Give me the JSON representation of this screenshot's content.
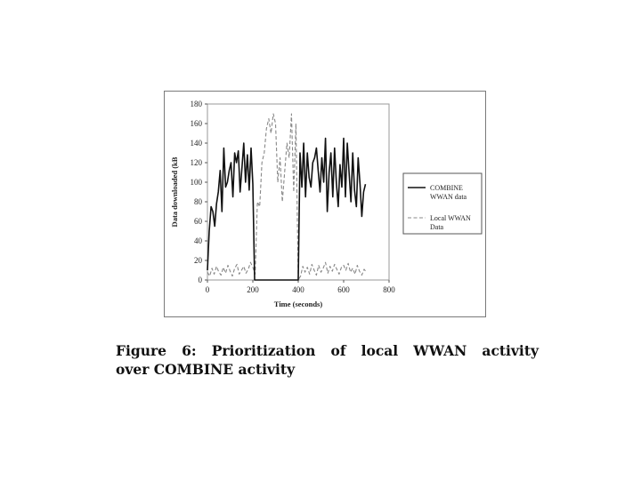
{
  "caption": {
    "line1": "Figure 6:  Prioritization  of  local  WWAN  activity",
    "line2": "over COMBINE activity"
  },
  "chart_data": {
    "type": "line",
    "xlabel": "Time (seconds)",
    "ylabel": "Data downloaded (kB",
    "xlim": [
      0,
      800
    ],
    "ylim": [
      0,
      180
    ],
    "xticks": [
      0,
      200,
      400,
      600,
      800
    ],
    "yticks": [
      0,
      20,
      40,
      60,
      80,
      100,
      120,
      140,
      160,
      180
    ],
    "grid": false,
    "legend_position": "right",
    "series": [
      {
        "name": "COMBINE WWAN data",
        "style": "solid",
        "color": "#111111",
        "x": [
          0,
          8,
          16,
          24,
          32,
          40,
          48,
          56,
          64,
          72,
          80,
          88,
          96,
          104,
          112,
          120,
          128,
          136,
          144,
          152,
          160,
          168,
          176,
          184,
          192,
          200,
          208,
          216,
          224,
          232,
          240,
          248,
          256,
          264,
          272,
          280,
          288,
          296,
          304,
          312,
          320,
          328,
          336,
          344,
          352,
          360,
          368,
          376,
          384,
          392,
          400,
          408,
          416,
          424,
          432,
          440,
          448,
          456,
          464,
          472,
          480,
          488,
          496,
          504,
          512,
          520,
          528,
          536,
          544,
          552,
          560,
          568,
          576,
          584,
          592,
          600,
          608,
          616,
          624,
          632,
          640,
          648,
          656,
          664,
          672,
          680,
          688,
          696
        ],
        "y": [
          10,
          50,
          75,
          70,
          55,
          78,
          90,
          112,
          70,
          135,
          95,
          100,
          112,
          120,
          85,
          130,
          120,
          132,
          90,
          115,
          140,
          100,
          128,
          92,
          135,
          98,
          0,
          0,
          0,
          0,
          0,
          0,
          0,
          0,
          0,
          0,
          0,
          0,
          0,
          0,
          0,
          0,
          0,
          0,
          0,
          0,
          0,
          0,
          0,
          0,
          0,
          130,
          95,
          140,
          85,
          130,
          105,
          95,
          120,
          125,
          135,
          112,
          90,
          125,
          100,
          145,
          70,
          110,
          130,
          85,
          135,
          100,
          75,
          118,
          95,
          145,
          85,
          140,
          110,
          80,
          130,
          92,
          75,
          125,
          98,
          65,
          90,
          98
        ]
      },
      {
        "name": "Local WWAN Data",
        "style": "dashed",
        "color": "#888888",
        "x": [
          0,
          10,
          20,
          30,
          40,
          50,
          60,
          70,
          80,
          90,
          100,
          110,
          120,
          130,
          140,
          150,
          160,
          170,
          180,
          190,
          200,
          210,
          220,
          230,
          240,
          250,
          260,
          270,
          280,
          290,
          300,
          310,
          320,
          330,
          340,
          350,
          360,
          370,
          380,
          390,
          400,
          410,
          420,
          430,
          440,
          450,
          460,
          470,
          480,
          490,
          500,
          510,
          520,
          530,
          540,
          550,
          560,
          570,
          580,
          590,
          600,
          610,
          620,
          630,
          640,
          650,
          660,
          670,
          680,
          690,
          700
        ],
        "y": [
          8,
          4,
          12,
          6,
          14,
          8,
          5,
          13,
          7,
          15,
          9,
          4,
          12,
          16,
          6,
          10,
          14,
          7,
          11,
          18,
          13,
          6,
          80,
          75,
          120,
          130,
          155,
          165,
          150,
          170,
          160,
          100,
          125,
          80,
          110,
          140,
          125,
          170,
          90,
          160,
          0,
          4,
          14,
          8,
          13,
          6,
          16,
          10,
          5,
          15,
          8,
          12,
          18,
          7,
          14,
          9,
          16,
          11,
          6,
          13,
          15,
          10,
          17,
          8,
          12,
          6,
          15,
          9,
          5,
          11,
          8
        ]
      }
    ]
  }
}
